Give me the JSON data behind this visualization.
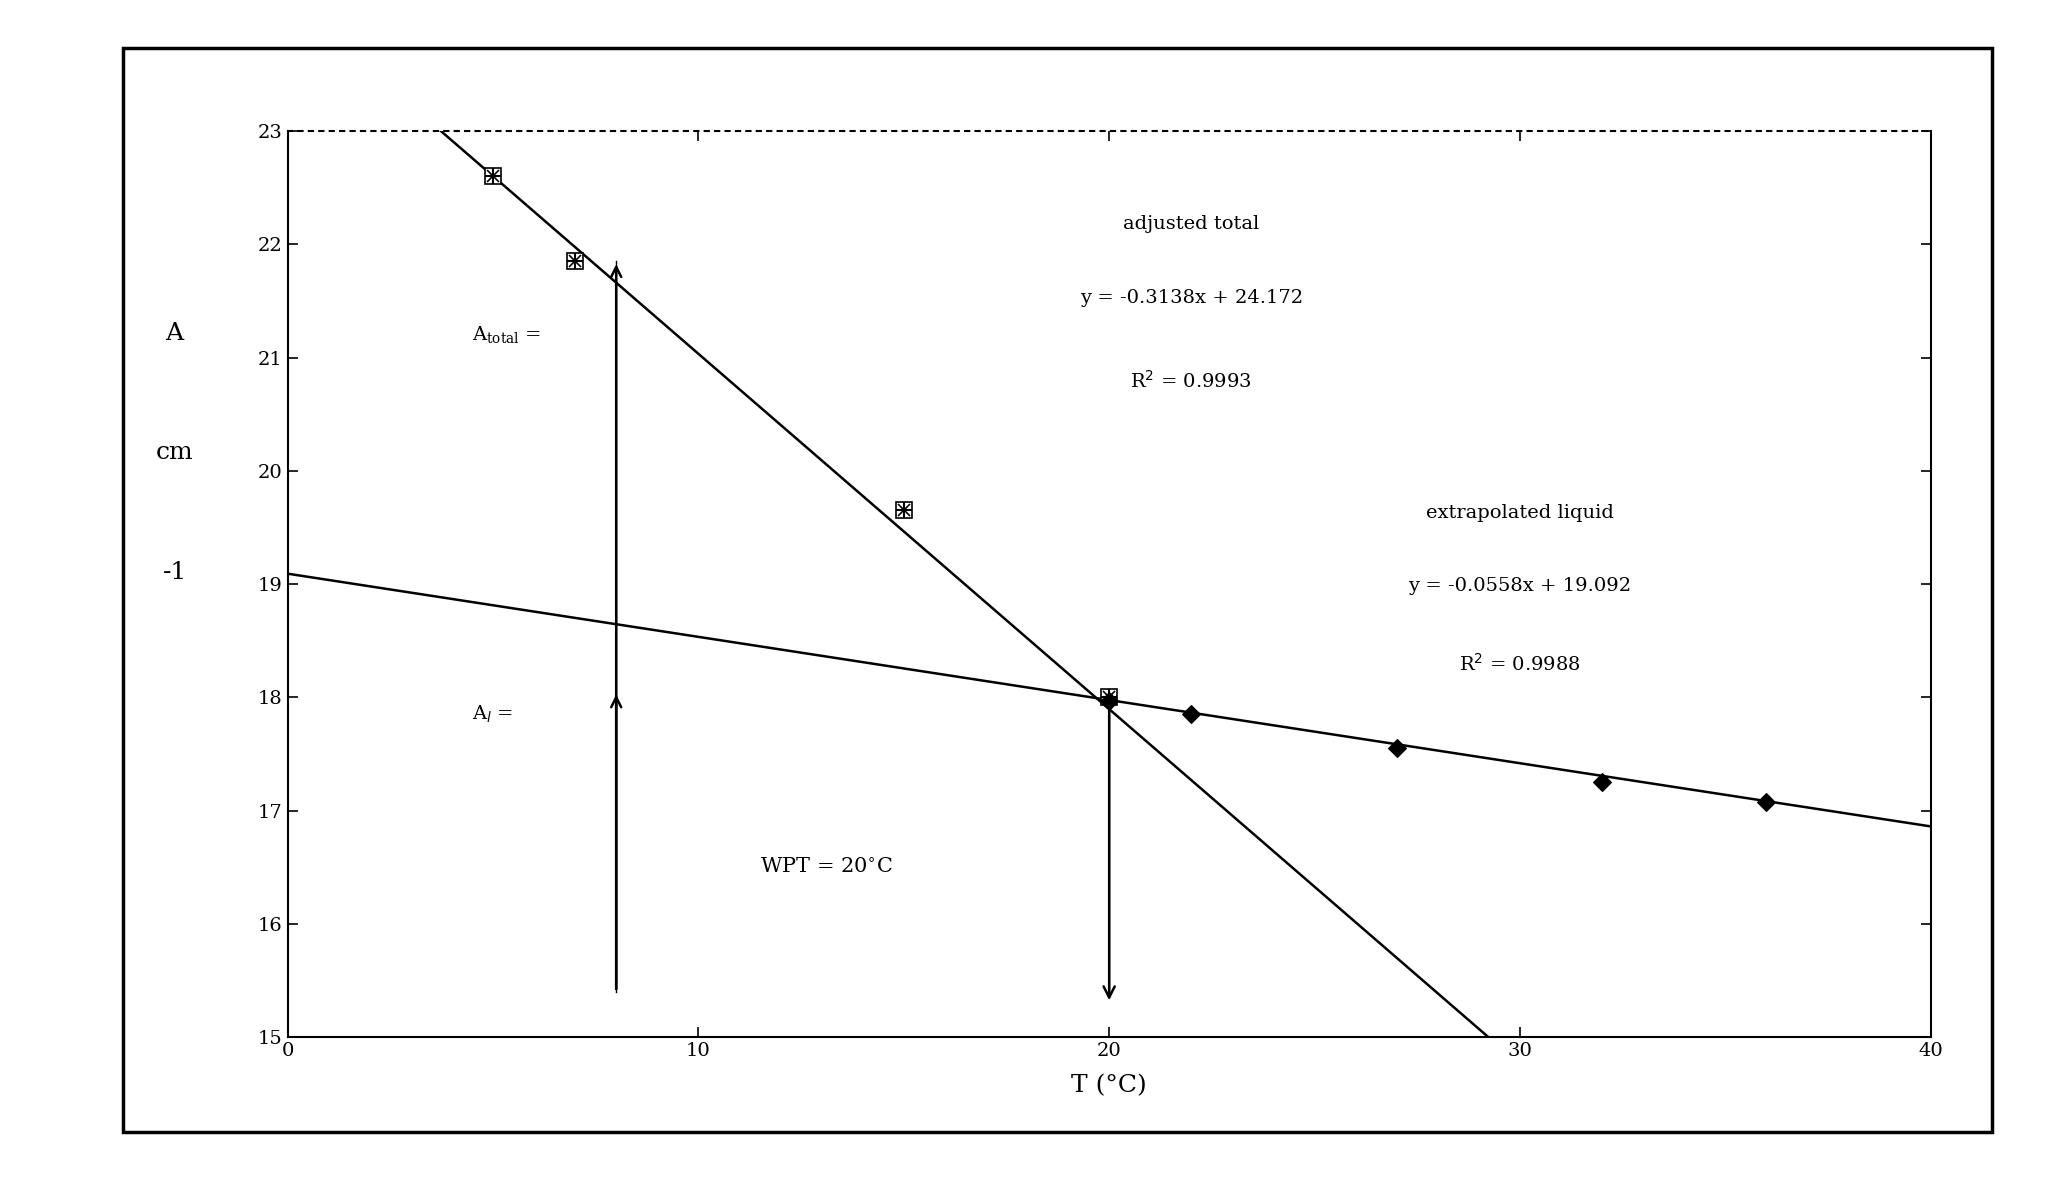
{
  "title": "",
  "xlabel": "T (°C)",
  "ylabel_lines": [
    "A",
    "cm",
    "-1"
  ],
  "xlim": [
    0,
    40
  ],
  "ylim": [
    15,
    23
  ],
  "xticks": [
    0,
    10,
    20,
    30,
    40
  ],
  "yticks": [
    15,
    16,
    17,
    18,
    19,
    20,
    21,
    22,
    23
  ],
  "total_scatter_x": [
    5,
    7,
    15,
    20
  ],
  "total_scatter_y": [
    22.6,
    21.85,
    19.65,
    18.0
  ],
  "liquid_scatter_x": [
    20,
    22,
    27,
    32,
    36
  ],
  "liquid_scatter_y": [
    17.97,
    17.85,
    17.55,
    17.25,
    17.08
  ],
  "total_line_slope": -0.3138,
  "total_line_intercept": 24.172,
  "liquid_line_slope": -0.0558,
  "liquid_line_intercept": 19.092,
  "total_line_x": [
    3,
    36
  ],
  "liquid_line_x": [
    0,
    40
  ],
  "bg_color": "#ffffff",
  "line_color": "#000000",
  "tick_fontsize": 14,
  "label_fontsize": 16,
  "annot_fontsize": 14
}
